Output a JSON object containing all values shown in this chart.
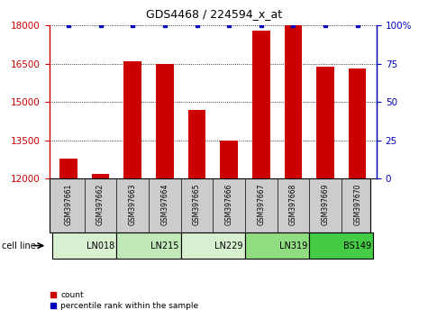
{
  "title": "GDS4468 / 224594_x_at",
  "samples": [
    "GSM397661",
    "GSM397662",
    "GSM397663",
    "GSM397664",
    "GSM397665",
    "GSM397666",
    "GSM397667",
    "GSM397668",
    "GSM397669",
    "GSM397670"
  ],
  "counts": [
    12800,
    12200,
    16600,
    16500,
    14700,
    13500,
    17800,
    18000,
    16400,
    16300
  ],
  "percentiles": [
    100,
    100,
    100,
    100,
    100,
    100,
    100,
    100,
    100,
    100
  ],
  "cell_lines": [
    {
      "name": "LN018",
      "start": 0,
      "end": 2,
      "color": "#d8f0d0"
    },
    {
      "name": "LN215",
      "start": 2,
      "end": 4,
      "color": "#c0e8b8"
    },
    {
      "name": "LN229",
      "start": 4,
      "end": 6,
      "color": "#d8f0d0"
    },
    {
      "name": "LN319",
      "start": 6,
      "end": 8,
      "color": "#90dc80"
    },
    {
      "name": "BS149",
      "start": 8,
      "end": 10,
      "color": "#44cc44"
    }
  ],
  "bar_color": "#cc0000",
  "dot_color": "#0000bb",
  "ylim_left": [
    12000,
    18000
  ],
  "yticks_left": [
    12000,
    13500,
    15000,
    16500,
    18000
  ],
  "ylim_right": [
    0,
    100
  ],
  "yticks_right": [
    0,
    25,
    50,
    75,
    100
  ],
  "bar_width": 0.55,
  "legend_count_label": "count",
  "legend_pct_label": "percentile rank within the sample",
  "cell_line_label": "cell line"
}
